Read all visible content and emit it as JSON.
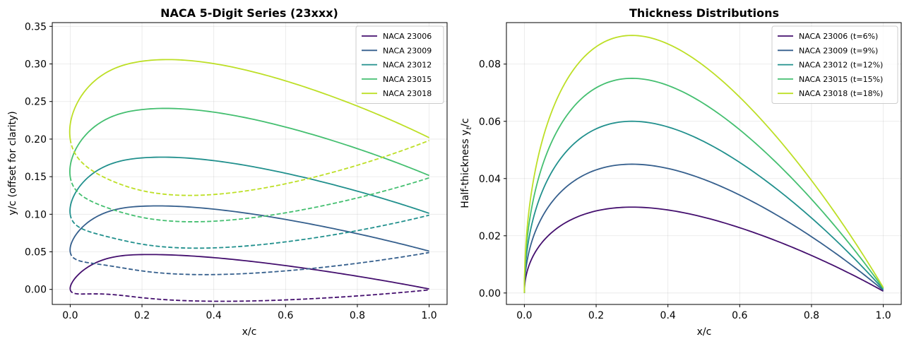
{
  "chart_data": [
    {
      "type": "line",
      "title": "NACA 5-Digit Series (23xxx)",
      "xlabel": "x/c",
      "ylabel": "y/c (offset for clarity)",
      "xlim": [
        -0.05,
        1.05
      ],
      "ylim": [
        -0.02,
        0.355
      ],
      "xticks": [
        "0.0",
        "0.2",
        "0.4",
        "0.6",
        "0.8",
        "1.0"
      ],
      "yticks": [
        "0.00",
        "0.05",
        "0.10",
        "0.15",
        "0.20",
        "0.25",
        "0.30",
        "0.35"
      ],
      "grid": true,
      "legend_position": "top-right",
      "series": [
        {
          "name": "NACA 23006",
          "color": "#440f6e",
          "thickness": 0.06,
          "offset": 0.0
        },
        {
          "name": "NACA 23009",
          "color": "#355f8d",
          "thickness": 0.09,
          "offset": 0.05
        },
        {
          "name": "NACA 23012",
          "color": "#21908d",
          "thickness": 0.12,
          "offset": 0.1
        },
        {
          "name": "NACA 23015",
          "color": "#44bf70",
          "thickness": 0.15,
          "offset": 0.15
        },
        {
          "name": "NACA 23018",
          "color": "#bddf26",
          "thickness": 0.18,
          "offset": 0.2
        }
      ]
    },
    {
      "type": "line",
      "title": "Thickness Distributions",
      "xlabel": "x/c",
      "ylabel": "Half-thickness y",
      "ylabel_sub": "t",
      "ylabel_suffix": "/c",
      "xlim": [
        -0.05,
        1.05
      ],
      "ylim": [
        -0.004,
        0.0945
      ],
      "xticks": [
        "0.0",
        "0.2",
        "0.4",
        "0.6",
        "0.8",
        "1.0"
      ],
      "yticks": [
        "0.00",
        "0.02",
        "0.04",
        "0.06",
        "0.08"
      ],
      "grid": true,
      "legend_position": "top-right",
      "series": [
        {
          "name": "NACA 23006 (t=6%)",
          "color": "#440f6e",
          "thickness": 0.06
        },
        {
          "name": "NACA 23009 (t=9%)",
          "color": "#355f8d",
          "thickness": 0.09
        },
        {
          "name": "NACA 23012 (t=12%)",
          "color": "#21908d",
          "thickness": 0.12
        },
        {
          "name": "NACA 23015 (t=15%)",
          "color": "#44bf70",
          "thickness": 0.15
        },
        {
          "name": "NACA 23018 (t=18%)",
          "color": "#bddf26",
          "thickness": 0.18
        }
      ]
    }
  ]
}
